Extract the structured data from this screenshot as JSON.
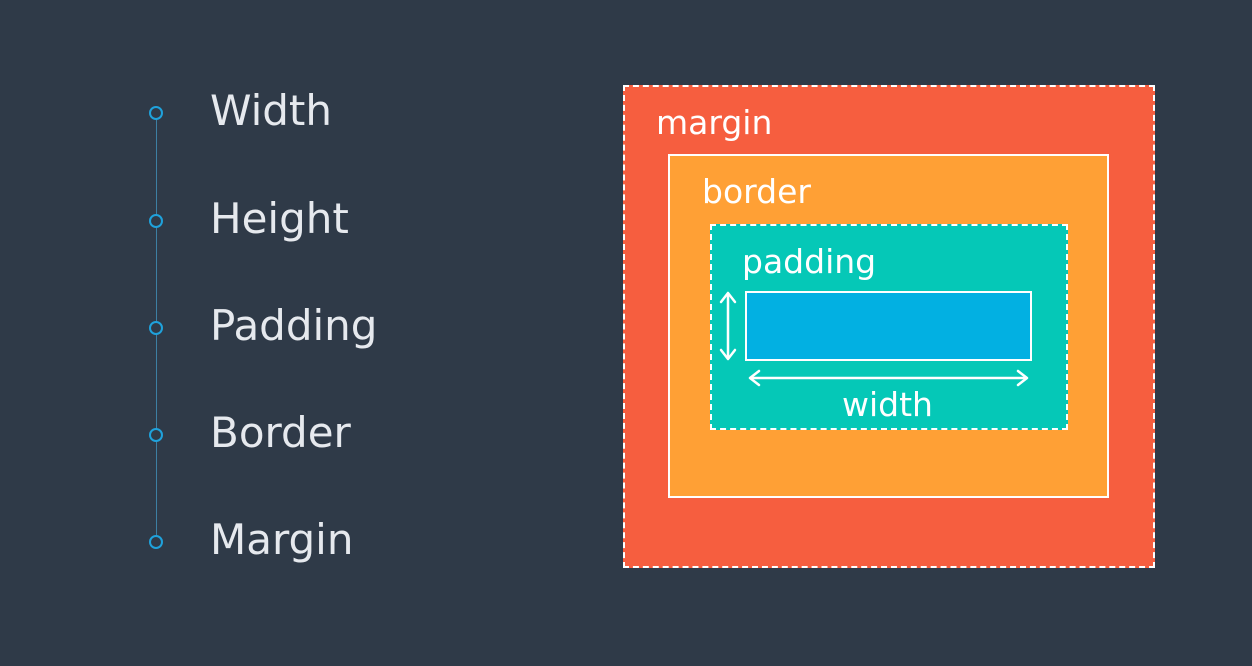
{
  "steps": {
    "items": [
      {
        "label": "Width"
      },
      {
        "label": "Height"
      },
      {
        "label": "Padding"
      },
      {
        "label": "Border"
      },
      {
        "label": "Margin"
      }
    ]
  },
  "diagram": {
    "margin_label": "margin",
    "border_label": "border",
    "padding_label": "padding",
    "width_label": "width"
  },
  "colors": {
    "background": "#2f3a48",
    "accent": "#1fa2dc",
    "margin": "#f65e3f",
    "border": "#ffa035",
    "padding": "#05c8b7",
    "content": "#02b0e2"
  }
}
